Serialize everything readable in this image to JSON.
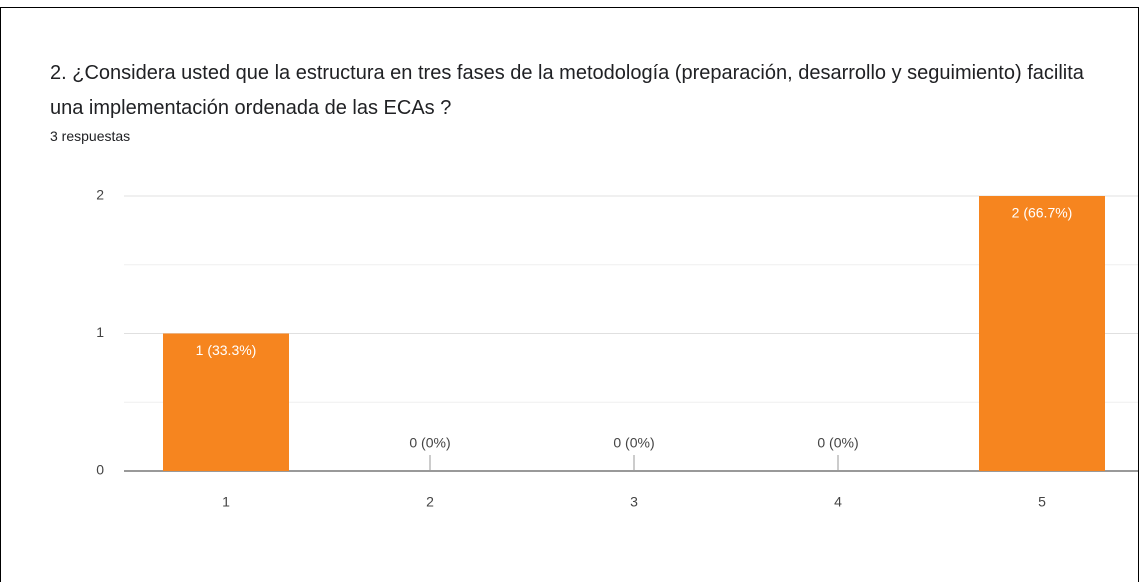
{
  "chart_data": {
    "type": "bar",
    "title": "2. ¿Considera usted que la estructura en tres fases de la metodología  (preparación, desarrollo y seguimiento) facilita una implementación ordenada de las ECAs ?",
    "subtitle": "3 respuestas",
    "categories": [
      "1",
      "2",
      "3",
      "4",
      "5"
    ],
    "values": [
      1,
      0,
      0,
      0,
      2
    ],
    "value_labels": [
      "1 (33.3%)",
      "0 (0%)",
      "0 (0%)",
      "0 (0%)",
      "2 (66.7%)"
    ],
    "color": "#f6851f",
    "ylim": [
      0,
      2
    ],
    "yticks": [
      0,
      1,
      2
    ],
    "minor_yticks": [
      0.5,
      1.5
    ],
    "grid": true
  }
}
